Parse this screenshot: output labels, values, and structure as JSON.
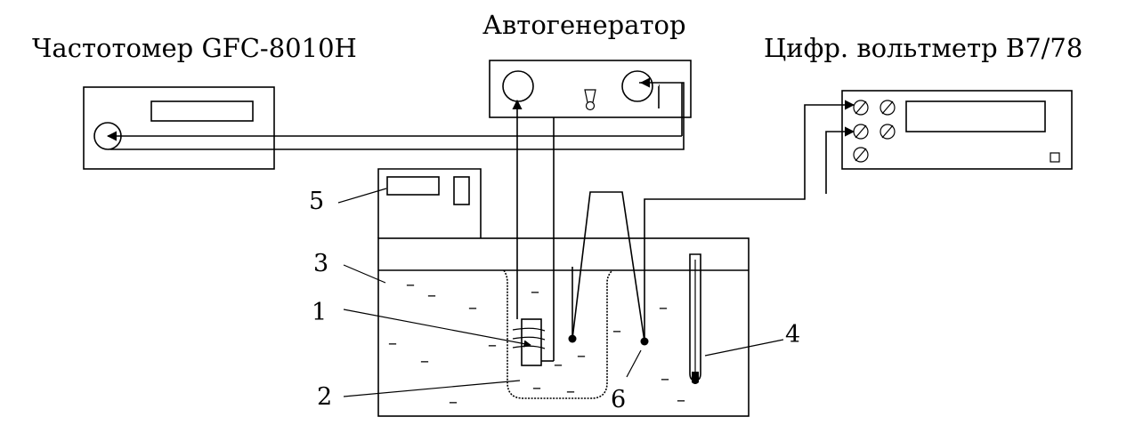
{
  "titles": {
    "frequency_meter": "Частотомер GFC-8010H",
    "generator": "Автогенератор",
    "voltmeter": "Цифр. вольтметр B7/78"
  },
  "labels": {
    "l1": "1",
    "l2": "2",
    "l3": "3",
    "l4": "4",
    "l5": "5",
    "l6": "6"
  },
  "liquid_mark": "–"
}
